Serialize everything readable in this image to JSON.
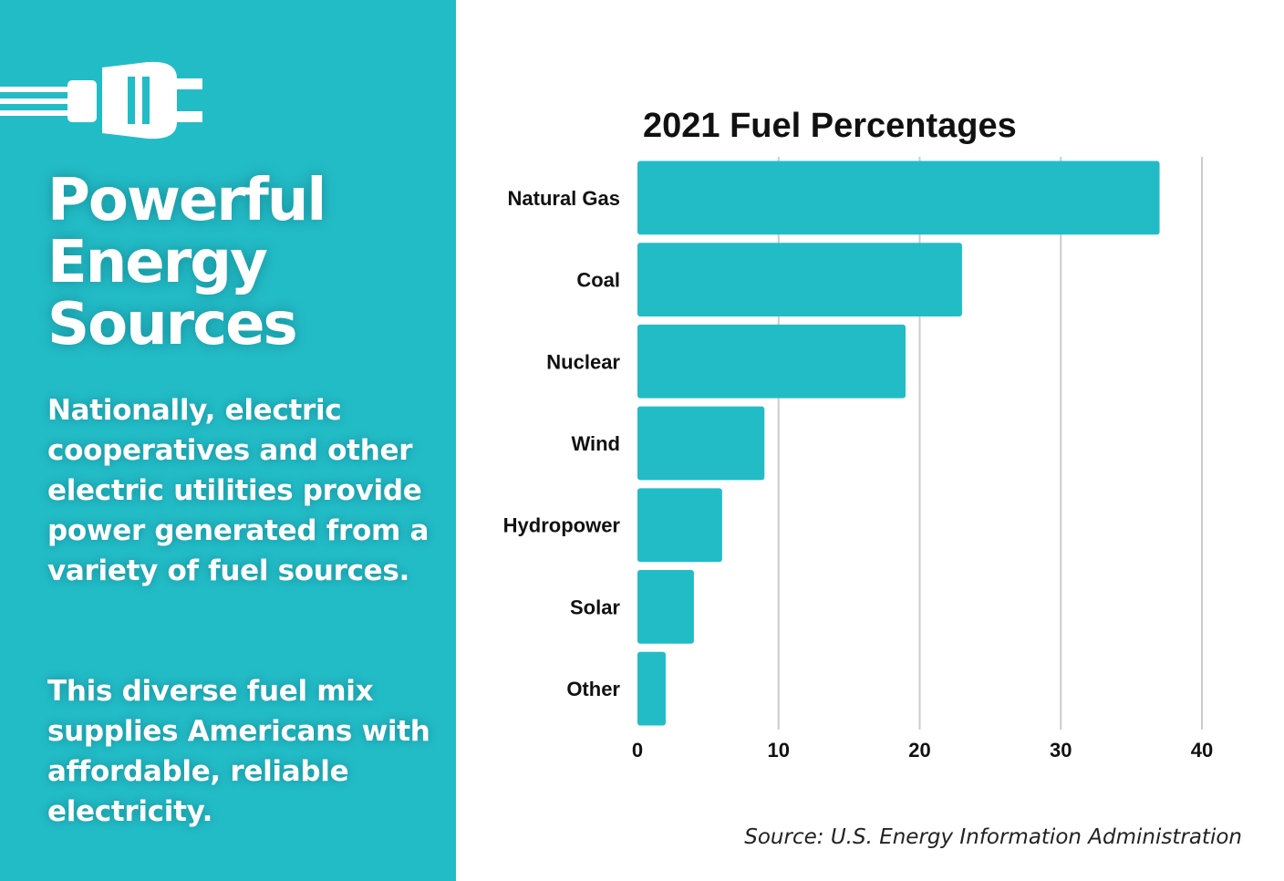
{
  "theme": {
    "accent": "#22bcc7",
    "panel_text": "#ffffff",
    "bar_color": "#22bcc7",
    "grid_color": "#cccccc"
  },
  "left_panel": {
    "icon": "power-plug-icon",
    "headline_lines": [
      "Powerful",
      "Energy",
      "Sources"
    ],
    "paragraph_1": "Nationally, electric cooperatives and other electric utilities provide power generated from a variety of fuel sources.",
    "paragraph_2": "This diverse fuel mix supplies Americans with affordable, reliable electricity."
  },
  "chart_data": {
    "type": "bar",
    "orientation": "horizontal",
    "title": "2021 Fuel Percentages",
    "categories": [
      "Natural Gas",
      "Coal",
      "Nuclear",
      "Wind",
      "Hydropower",
      "Solar",
      "Other"
    ],
    "values": [
      37,
      23,
      19,
      9,
      6,
      4,
      2
    ],
    "xlim": [
      0,
      40
    ],
    "xticks": [
      0,
      10,
      20,
      30,
      40
    ],
    "xlabel": "",
    "ylabel": "",
    "grid": "vertical",
    "legend": "none"
  },
  "source": "Source: U.S. Energy Information Administration"
}
